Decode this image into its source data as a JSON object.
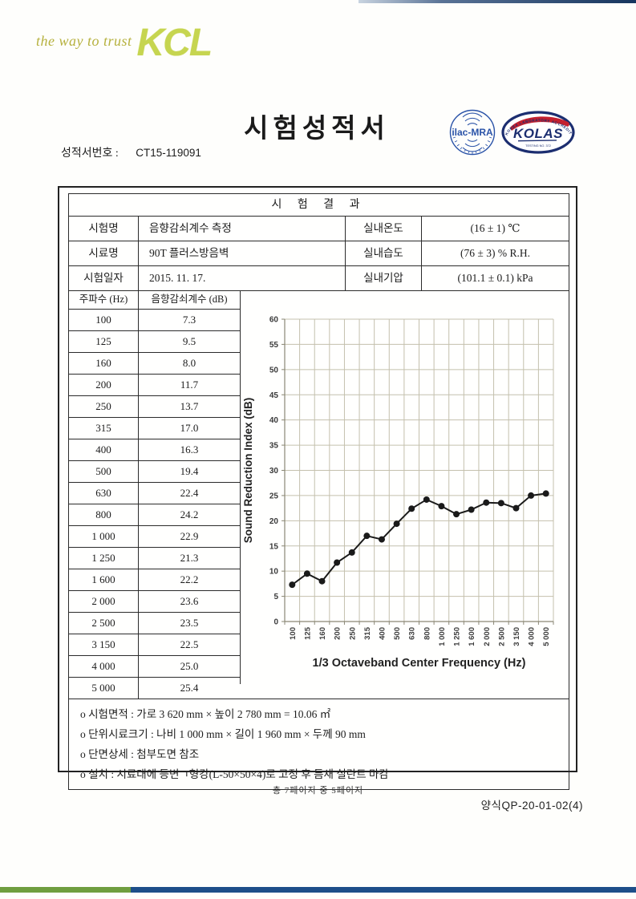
{
  "header": {
    "tagline": "the way to trust",
    "logo_text": "KCL",
    "title": "시험성적서",
    "report_no_label": "성적서번호 :",
    "report_no_value": "CT15-119091"
  },
  "logos": {
    "ilac_text": "ilac-MRA",
    "kolas_text": "KOLAS",
    "kolas_ring_text": "KOREA LABORATORY ACCREDITATION SCHEME",
    "kolas_sub_text": "TESTING NO. 372"
  },
  "results": {
    "section_title": "시 험 결 과",
    "info_rows": [
      {
        "label1": "시험명",
        "value1": "음향감쇠계수 측정",
        "label2": "실내온도",
        "value2": "(16 ± 1) ℃"
      },
      {
        "label1": "시료명",
        "value1": "90T 플러스방음벽",
        "label2": "실내습도",
        "value2": "(76 ± 3) % R.H."
      },
      {
        "label1": "시험일자",
        "value1": "2015. 11. 17.",
        "label2": "실내기압",
        "value2": "(101.1 ± 0.1) kPa"
      }
    ],
    "freq_header": "주파수 (Hz)",
    "value_header": "음향감쇠계수 (dB)",
    "rows": [
      {
        "freq": "100",
        "value": "7.3"
      },
      {
        "freq": "125",
        "value": "9.5"
      },
      {
        "freq": "160",
        "value": "8.0"
      },
      {
        "freq": "200",
        "value": "11.7"
      },
      {
        "freq": "250",
        "value": "13.7"
      },
      {
        "freq": "315",
        "value": "17.0"
      },
      {
        "freq": "400",
        "value": "16.3"
      },
      {
        "freq": "500",
        "value": "19.4"
      },
      {
        "freq": "630",
        "value": "22.4"
      },
      {
        "freq": "800",
        "value": "24.2"
      },
      {
        "freq": "1 000",
        "value": "22.9"
      },
      {
        "freq": "1 250",
        "value": "21.3"
      },
      {
        "freq": "1 600",
        "value": "22.2"
      },
      {
        "freq": "2 000",
        "value": "23.6"
      },
      {
        "freq": "2 500",
        "value": "23.5"
      },
      {
        "freq": "3 150",
        "value": "22.5"
      },
      {
        "freq": "4 000",
        "value": "25.0"
      },
      {
        "freq": "5 000",
        "value": "25.4"
      }
    ],
    "notes": [
      "o 시험면적 : 가로 3 620 mm × 높이 2 780 mm = 10.06 ㎡",
      "o 단위시료크기 : 나비 1 000 mm × 길이 1 960 mm × 두께 90 mm",
      "o 단면상세 : 첨부도면 참조",
      "o 설치 : 시료대에 등변ㄱ형강(L-50×50×4)로 고정 후 틈새 실란트 마감"
    ]
  },
  "chart_data": {
    "type": "line",
    "categories": [
      "100",
      "125",
      "160",
      "200",
      "250",
      "315",
      "400",
      "500",
      "630",
      "800",
      "1 000",
      "1 250",
      "1 600",
      "2 000",
      "2 500",
      "3 150",
      "4 000",
      "5 000"
    ],
    "values": [
      7.3,
      9.5,
      8.0,
      11.7,
      13.7,
      17.0,
      16.3,
      19.4,
      22.4,
      24.2,
      22.9,
      21.3,
      22.2,
      23.6,
      23.5,
      22.5,
      25.0,
      25.4
    ],
    "title": "",
    "xlabel": "1/3 Octaveband Center Frequency (Hz)",
    "ylabel": "Sound Reduction Index (dB)",
    "ylim": [
      0,
      60
    ],
    "ytick_step": 5,
    "grid": true,
    "legend": "none",
    "line_color": "#1a1a1a",
    "marker": "circle",
    "grid_color": "#c4c0ad",
    "axis_color": "#8a8775"
  },
  "footer": {
    "page_indicator": "총 7페이지 중 5페이지",
    "form_code": "양식QP-20-01-02(4)"
  },
  "accent_colors": {
    "kcl_green": "#c6d550",
    "tagline_olive": "#b6b13e",
    "bar_green": "#6f9e3f",
    "bar_navy": "#1d4e89",
    "logo_blue": "#2a53a8",
    "kolas_navy": "#1c2e70",
    "kolas_red": "#c4202e"
  }
}
